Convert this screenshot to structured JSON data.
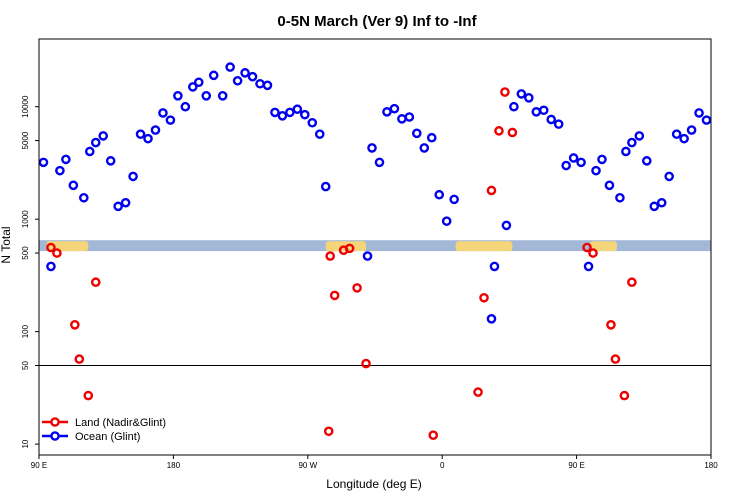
{
  "chart_data": {
    "type": "scatter",
    "title": "0-5N March (Ver 9)   Inf to -Inf",
    "xlabel": "Longitude (deg E)",
    "ylabel": "N Total",
    "y_scale": "log",
    "xlim": [
      0,
      450
    ],
    "ylim": [
      8,
      40000
    ],
    "x_ticks": [
      {
        "value": 0,
        "label": "90 E"
      },
      {
        "value": 90,
        "label": "180"
      },
      {
        "value": 180,
        "label": "90 W"
      },
      {
        "value": 270,
        "label": "0"
      },
      {
        "value": 360,
        "label": "90 E"
      },
      {
        "value": 450,
        "label": "180"
      }
    ],
    "y_ticks": [
      {
        "value": 10,
        "label": "10"
      },
      {
        "value": 50,
        "label": "50"
      },
      {
        "value": 100,
        "label": "100"
      },
      {
        "value": 500,
        "label": "500"
      },
      {
        "value": 1000,
        "label": "1000"
      },
      {
        "value": 5000,
        "label": "5000"
      },
      {
        "value": 10000,
        "label": "10000"
      }
    ],
    "reference_line": {
      "y": 50
    },
    "map_strip": {
      "y_range": [
        520,
        650
      ],
      "ocean_color": "#a2b8d6",
      "land_color": "#f5d57a",
      "land_segments": [
        [
          5,
          33
        ],
        [
          192,
          219
        ],
        [
          279,
          317
        ],
        [
          369,
          387
        ]
      ]
    },
    "series": [
      {
        "name": "Land (Nadir&Glint)",
        "color": "#ee0000",
        "points": [
          {
            "x": 8,
            "y": 560
          },
          {
            "x": 12,
            "y": 500
          },
          {
            "x": 24,
            "y": 115
          },
          {
            "x": 27,
            "y": 57
          },
          {
            "x": 33,
            "y": 27
          },
          {
            "x": 38,
            "y": 275
          },
          {
            "x": 194,
            "y": 13
          },
          {
            "x": 195,
            "y": 470
          },
          {
            "x": 198,
            "y": 210
          },
          {
            "x": 204,
            "y": 530
          },
          {
            "x": 208,
            "y": 550
          },
          {
            "x": 213,
            "y": 245
          },
          {
            "x": 219,
            "y": 52
          },
          {
            "x": 264,
            "y": 12
          },
          {
            "x": 294,
            "y": 29
          },
          {
            "x": 298,
            "y": 200
          },
          {
            "x": 303,
            "y": 1800
          },
          {
            "x": 308,
            "y": 6100
          },
          {
            "x": 312,
            "y": 13500
          },
          {
            "x": 317,
            "y": 5900
          },
          {
            "x": 367,
            "y": 560
          },
          {
            "x": 371,
            "y": 500
          },
          {
            "x": 383,
            "y": 115
          },
          {
            "x": 386,
            "y": 57
          },
          {
            "x": 392,
            "y": 27
          },
          {
            "x": 397,
            "y": 275
          }
        ]
      },
      {
        "name": "Ocean (Glint)",
        "color": "#0000ee",
        "points": [
          {
            "x": 3,
            "y": 3200
          },
          {
            "x": 8,
            "y": 380
          },
          {
            "x": 14,
            "y": 2700
          },
          {
            "x": 18,
            "y": 3400
          },
          {
            "x": 23,
            "y": 2000
          },
          {
            "x": 30,
            "y": 1550
          },
          {
            "x": 34,
            "y": 4000
          },
          {
            "x": 38,
            "y": 4800
          },
          {
            "x": 43,
            "y": 5500
          },
          {
            "x": 48,
            "y": 3300
          },
          {
            "x": 53,
            "y": 1300
          },
          {
            "x": 58,
            "y": 1400
          },
          {
            "x": 63,
            "y": 2400
          },
          {
            "x": 68,
            "y": 5700
          },
          {
            "x": 73,
            "y": 5200
          },
          {
            "x": 78,
            "y": 6200
          },
          {
            "x": 83,
            "y": 8800
          },
          {
            "x": 88,
            "y": 7600
          },
          {
            "x": 93,
            "y": 12500
          },
          {
            "x": 98,
            "y": 10000
          },
          {
            "x": 103,
            "y": 15000
          },
          {
            "x": 107,
            "y": 16500
          },
          {
            "x": 112,
            "y": 12500
          },
          {
            "x": 117,
            "y": 19000
          },
          {
            "x": 123,
            "y": 12500
          },
          {
            "x": 128,
            "y": 22500
          },
          {
            "x": 133,
            "y": 17000
          },
          {
            "x": 138,
            "y": 20000
          },
          {
            "x": 143,
            "y": 18500
          },
          {
            "x": 148,
            "y": 16000
          },
          {
            "x": 153,
            "y": 15500
          },
          {
            "x": 158,
            "y": 8900
          },
          {
            "x": 163,
            "y": 8300
          },
          {
            "x": 168,
            "y": 8900
          },
          {
            "x": 173,
            "y": 9500
          },
          {
            "x": 178,
            "y": 8500
          },
          {
            "x": 183,
            "y": 7200
          },
          {
            "x": 188,
            "y": 5700
          },
          {
            "x": 192,
            "y": 1950
          },
          {
            "x": 220,
            "y": 470
          },
          {
            "x": 223,
            "y": 4300
          },
          {
            "x": 228,
            "y": 3200
          },
          {
            "x": 233,
            "y": 9000
          },
          {
            "x": 238,
            "y": 9600
          },
          {
            "x": 243,
            "y": 7800
          },
          {
            "x": 248,
            "y": 8100
          },
          {
            "x": 253,
            "y": 5800
          },
          {
            "x": 258,
            "y": 4300
          },
          {
            "x": 263,
            "y": 5300
          },
          {
            "x": 268,
            "y": 1650
          },
          {
            "x": 273,
            "y": 960
          },
          {
            "x": 278,
            "y": 1500
          },
          {
            "x": 303,
            "y": 130
          },
          {
            "x": 305,
            "y": 380
          },
          {
            "x": 313,
            "y": 880
          },
          {
            "x": 318,
            "y": 10000
          },
          {
            "x": 323,
            "y": 13000
          },
          {
            "x": 328,
            "y": 12000
          },
          {
            "x": 333,
            "y": 9000
          },
          {
            "x": 338,
            "y": 9300
          },
          {
            "x": 343,
            "y": 7700
          },
          {
            "x": 348,
            "y": 7000
          },
          {
            "x": 353,
            "y": 3000
          },
          {
            "x": 358,
            "y": 3500
          },
          {
            "x": 363,
            "y": 3200
          },
          {
            "x": 368,
            "y": 380
          },
          {
            "x": 373,
            "y": 2700
          },
          {
            "x": 377,
            "y": 3400
          },
          {
            "x": 382,
            "y": 2000
          },
          {
            "x": 389,
            "y": 1550
          },
          {
            "x": 393,
            "y": 4000
          },
          {
            "x": 397,
            "y": 4800
          },
          {
            "x": 402,
            "y": 5500
          },
          {
            "x": 407,
            "y": 3300
          },
          {
            "x": 412,
            "y": 1300
          },
          {
            "x": 417,
            "y": 1400
          },
          {
            "x": 422,
            "y": 2400
          },
          {
            "x": 427,
            "y": 5700
          },
          {
            "x": 432,
            "y": 5200
          },
          {
            "x": 437,
            "y": 6200
          },
          {
            "x": 442,
            "y": 8800
          },
          {
            "x": 447,
            "y": 7600
          }
        ]
      }
    ],
    "legend": {
      "position": "bottom-left",
      "entries": [
        {
          "label": "Land (Nadir&Glint)",
          "color": "#ee0000"
        },
        {
          "label": "Ocean (Glint)",
          "color": "#0000ee"
        }
      ]
    }
  }
}
